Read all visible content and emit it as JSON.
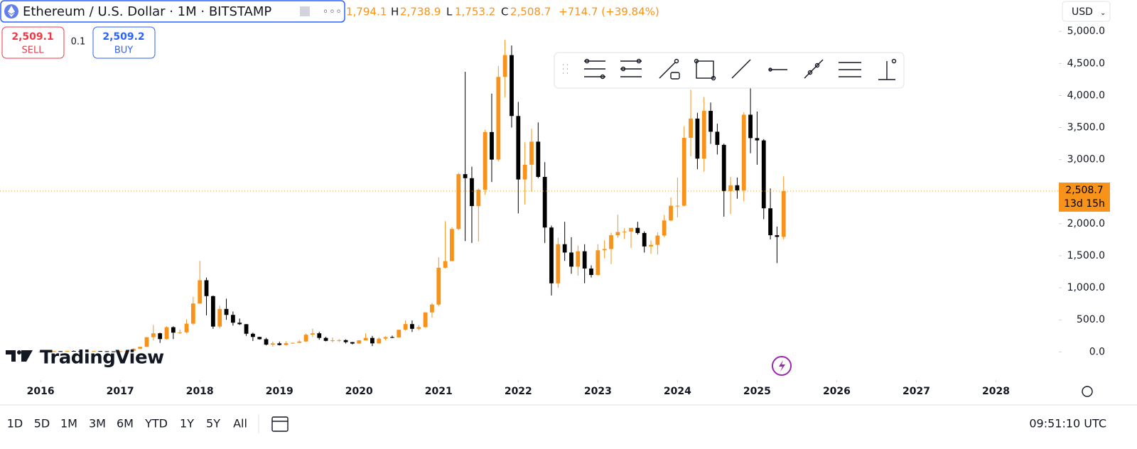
{
  "header": {
    "title": "Ethereum / U.S. Dollar · 1M · BITSTAMP",
    "ohlc": [
      {
        "label": "",
        "value": "1,794.1"
      },
      {
        "label": "H",
        "value": "2,738.9"
      },
      {
        "label": "L",
        "value": "1,753.2"
      },
      {
        "label": "C",
        "value": "2,508.7"
      }
    ],
    "change": "+714.7 (+39.84%)",
    "currency": "USD"
  },
  "trade": {
    "sell_price": "2,509.1",
    "sell": "SELL",
    "quantity": "0.1",
    "buy_price": "2,509.2",
    "buy": "BUY"
  },
  "price_label": {
    "price": "2,508.7",
    "countdown": "13d 15h"
  },
  "logo": "TradingView",
  "footer": {
    "ranges": [
      "1D",
      "5D",
      "1M",
      "3M",
      "6M",
      "YTD",
      "1Y",
      "5Y",
      "All"
    ],
    "clock": "09:51:10 UTC"
  },
  "chart_data": {
    "type": "candlestick",
    "up_color": "#f7931a",
    "down_color": "#000000",
    "x": [
      "2016-01",
      "2016-02",
      "2016-03",
      "2016-04",
      "2016-05",
      "2016-06",
      "2016-07",
      "2016-08",
      "2016-09",
      "2016-10",
      "2016-11",
      "2016-12",
      "2017-01",
      "2017-02",
      "2017-03",
      "2017-04",
      "2017-05",
      "2017-06",
      "2017-07",
      "2017-08",
      "2017-09",
      "2017-10",
      "2017-11",
      "2017-12",
      "2018-01",
      "2018-02",
      "2018-03",
      "2018-04",
      "2018-05",
      "2018-06",
      "2018-07",
      "2018-08",
      "2018-09",
      "2018-10",
      "2018-11",
      "2018-12",
      "2019-01",
      "2019-02",
      "2019-03",
      "2019-04",
      "2019-05",
      "2019-06",
      "2019-07",
      "2019-08",
      "2019-09",
      "2019-10",
      "2019-11",
      "2019-12",
      "2020-01",
      "2020-02",
      "2020-03",
      "2020-04",
      "2020-05",
      "2020-06",
      "2020-07",
      "2020-08",
      "2020-09",
      "2020-10",
      "2020-11",
      "2020-12",
      "2021-01",
      "2021-02",
      "2021-03",
      "2021-04",
      "2021-05",
      "2021-06",
      "2021-07",
      "2021-08",
      "2021-09",
      "2021-10",
      "2021-11",
      "2021-12",
      "2022-01",
      "2022-02",
      "2022-03",
      "2022-04",
      "2022-05",
      "2022-06",
      "2022-07",
      "2022-08",
      "2022-09",
      "2022-10",
      "2022-11",
      "2022-12",
      "2023-01",
      "2023-02",
      "2023-03",
      "2023-04",
      "2023-05",
      "2023-06",
      "2023-07",
      "2023-08",
      "2023-09",
      "2023-10",
      "2023-11",
      "2023-12",
      "2024-01",
      "2024-02",
      "2024-03",
      "2024-04",
      "2024-05",
      "2024-06",
      "2024-07",
      "2024-08",
      "2024-09",
      "2024-10",
      "2024-11",
      "2024-12",
      "2025-01",
      "2025-02",
      "2025-03",
      "2025-04",
      "2025-05"
    ],
    "open": [
      0.93,
      2.2,
      6.3,
      11.4,
      8.8,
      14,
      12.3,
      11.3,
      11.4,
      13.1,
      11,
      8.7,
      7.9,
      10.6,
      15.8,
      50,
      79,
      229,
      290,
      200,
      385,
      300,
      305,
      440,
      755,
      1118,
      870,
      395,
      670,
      577,
      455,
      432,
      283,
      233,
      198,
      113,
      133,
      107,
      136,
      141,
      162,
      268,
      290,
      218,
      172,
      180,
      183,
      152,
      130,
      180,
      218,
      133,
      207,
      231,
      226,
      345,
      434,
      360,
      386,
      616,
      738,
      1313,
      1416,
      1918,
      2773,
      2710,
      2275,
      2531,
      3430,
      3000,
      4290,
      4630,
      3680,
      2690,
      2920,
      3280,
      2730,
      1940,
      1070,
      1680,
      1550,
      1330,
      1570,
      1300,
      1200,
      1585,
      1605,
      1820,
      1870,
      1875,
      1935,
      1855,
      1645,
      1670,
      1815,
      2050,
      2280,
      2280,
      3340,
      3640,
      3015,
      3760,
      3435,
      3230,
      2510,
      2600,
      2520,
      3700,
      3335,
      3300,
      2240,
      1820,
      1794.1
    ],
    "high": [
      2.5,
      6.5,
      15,
      12,
      14.5,
      21,
      14.5,
      12,
      14,
      13.5,
      11.5,
      9,
      11.5,
      16,
      55,
      80,
      230,
      420,
      300,
      400,
      400,
      350,
      510,
      860,
      1420,
      1160,
      880,
      720,
      830,
      630,
      520,
      435,
      300,
      235,
      220,
      160,
      160,
      165,
      145,
      185,
      285,
      360,
      315,
      235,
      225,
      200,
      195,
      155,
      185,
      290,
      250,
      228,
      245,
      253,
      345,
      490,
      490,
      420,
      620,
      760,
      1475,
      2040,
      1945,
      2795,
      4370,
      2890,
      2550,
      3465,
      4030,
      4460,
      4870,
      4780,
      3900,
      3270,
      3480,
      3580,
      2960,
      1970,
      1780,
      2030,
      1790,
      1660,
      1680,
      1350,
      1680,
      1740,
      1860,
      2140,
      1930,
      1930,
      2030,
      1880,
      1740,
      1865,
      2135,
      2410,
      2720,
      3520,
      4090,
      3730,
      3975,
      3890,
      3560,
      3250,
      2730,
      2720,
      3740,
      4110,
      3750,
      3320,
      2550,
      1955,
      2738.9
    ],
    "low": [
      0.9,
      2.1,
      6,
      7,
      8.7,
      11,
      10,
      10.5,
      11.2,
      10.5,
      7.7,
      6.2,
      7.9,
      10.3,
      15.8,
      42,
      77,
      180,
      140,
      190,
      200,
      280,
      290,
      420,
      750,
      570,
      360,
      365,
      500,
      410,
      420,
      250,
      170,
      190,
      100,
      82,
      100,
      100,
      126,
      140,
      160,
      230,
      190,
      165,
      150,
      155,
      130,
      116,
      127,
      177,
      90,
      130,
      180,
      214,
      224,
      334,
      310,
      335,
      375,
      535,
      715,
      1300,
      1425,
      1900,
      1730,
      1700,
      1720,
      2450,
      2650,
      2970,
      3970,
      3500,
      2160,
      2300,
      2500,
      2710,
      1700,
      880,
      1000,
      1420,
      1220,
      1190,
      1070,
      1160,
      1190,
      1460,
      1370,
      1780,
      1760,
      1620,
      1830,
      1550,
      1530,
      1520,
      1790,
      2040,
      2100,
      2270,
      3050,
      2850,
      2810,
      3245,
      3080,
      2110,
      2150,
      2390,
      2350,
      3100,
      2920,
      2070,
      1755,
      1385,
      1753.2
    ],
    "close": [
      2.2,
      6.3,
      11.4,
      8.8,
      14,
      12.3,
      11.3,
      11.4,
      13.1,
      11,
      8.7,
      7.9,
      10.6,
      15.8,
      50,
      79,
      229,
      290,
      200,
      385,
      300,
      305,
      440,
      755,
      1118,
      870,
      395,
      670,
      577,
      455,
      432,
      283,
      233,
      198,
      113,
      133,
      107,
      136,
      141,
      162,
      268,
      290,
      218,
      172,
      180,
      183,
      152,
      130,
      180,
      218,
      133,
      207,
      231,
      226,
      345,
      434,
      360,
      386,
      616,
      738,
      1313,
      1416,
      1918,
      2773,
      2710,
      2275,
      2531,
      3430,
      3000,
      4290,
      4630,
      3680,
      2690,
      2920,
      3280,
      2730,
      1940,
      1070,
      1680,
      1550,
      1330,
      1570,
      1300,
      1200,
      1585,
      1605,
      1820,
      1870,
      1875,
      1935,
      1855,
      1645,
      1670,
      1815,
      2050,
      2280,
      2280,
      3340,
      3640,
      3015,
      3760,
      3435,
      3230,
      2510,
      2600,
      2520,
      3700,
      3335,
      3300,
      2240,
      1820,
      1794,
      2508.7
    ],
    "xlim": [
      2015.49,
      2028.79
    ],
    "xticks": [
      2016,
      2017,
      2018,
      2019,
      2020,
      2021,
      2022,
      2023,
      2024,
      2025,
      2026,
      2027,
      2028
    ],
    "ylim": [
      -440,
      5490
    ],
    "yticks": [
      {
        "value": 0,
        "label": "0.0"
      },
      {
        "value": 500,
        "label": "500.0"
      },
      {
        "value": 1000,
        "label": "1,000.0"
      },
      {
        "value": 1500,
        "label": "1,500.0"
      },
      {
        "value": 2000,
        "label": "2,000.0"
      },
      {
        "value": 2500,
        "label": "2,500.0"
      },
      {
        "value": 3000,
        "label": "3,000.0"
      },
      {
        "value": 3500,
        "label": "3,500.0"
      },
      {
        "value": 4000,
        "label": "4,000.0"
      },
      {
        "value": 4500,
        "label": "4,500.0"
      },
      {
        "value": 5000,
        "label": "5,000.0"
      }
    ]
  }
}
